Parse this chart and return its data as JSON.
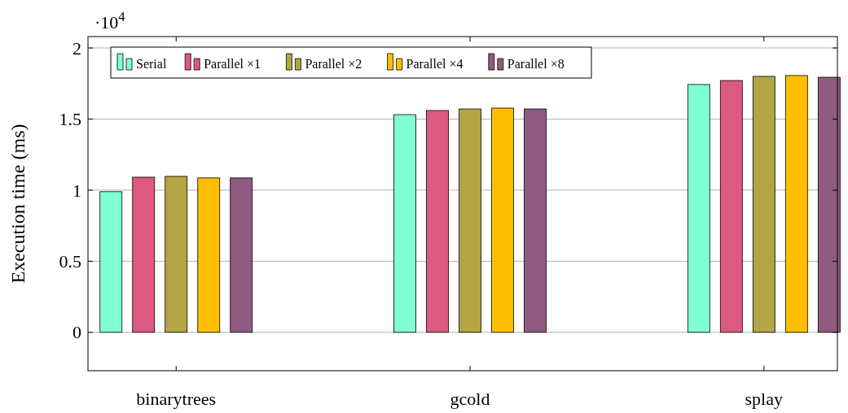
{
  "chart_data": {
    "type": "bar",
    "ylabel": "Execution time (ms)",
    "categories": [
      "binarytrees",
      "gcold",
      "splay"
    ],
    "series": [
      {
        "name": "Serial",
        "color": "#7fffd4",
        "values": [
          0.989,
          1.531,
          1.743
        ]
      },
      {
        "name": "Parallel ×1",
        "color": "#dc5a82",
        "values": [
          1.091,
          1.56,
          1.771
        ]
      },
      {
        "name": "Parallel ×2",
        "color": "#b4a444",
        "values": [
          1.097,
          1.571,
          1.8
        ]
      },
      {
        "name": "Parallel ×4",
        "color": "#ffbf00",
        "values": [
          1.086,
          1.577,
          1.806
        ]
      },
      {
        "name": "Parallel ×8",
        "color": "#8f5b80",
        "values": [
          1.086,
          1.571,
          1.794
        ]
      }
    ],
    "ylim": [
      -0.27,
      2.08
    ],
    "yticks": [
      0,
      0.5,
      1,
      1.5,
      2
    ],
    "annotations": [
      "·10$^{4}$"
    ],
    "grid": "y",
    "legend": "top left"
  }
}
